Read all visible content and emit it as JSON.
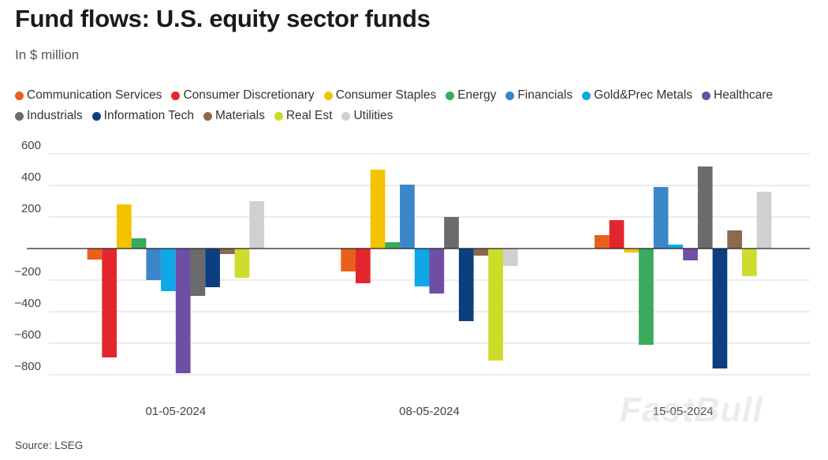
{
  "title": "Fund flows: U.S. equity sector funds",
  "subtitle": "In $ million",
  "source": "Source: LSEG",
  "watermark": "FastBull",
  "chart_data": {
    "type": "bar",
    "title": "Fund flows: U.S. equity sector funds",
    "ylabel": "In $ million",
    "xlabel": "",
    "ylim": [
      -800,
      600
    ],
    "yticks": [
      600,
      400,
      200,
      0,
      -200,
      -400,
      -600,
      -800
    ],
    "ytick_labels": [
      "600",
      "400",
      "200",
      "",
      "−200",
      "−400",
      "−600",
      "−800"
    ],
    "grid": true,
    "legend_position": "top",
    "categories": [
      "01-05-2024",
      "08-05-2024",
      "15-05-2024"
    ],
    "series": [
      {
        "name": "Communication Services",
        "color": "#e8601c",
        "values": [
          -70,
          -145,
          85
        ]
      },
      {
        "name": "Consumer Discretionary",
        "color": "#e3262d",
        "values": [
          -690,
          -220,
          180
        ]
      },
      {
        "name": "Consumer Staples",
        "color": "#f3c300",
        "values": [
          280,
          500,
          -25
        ]
      },
      {
        "name": "Energy",
        "color": "#3aaa5c",
        "values": [
          65,
          40,
          -610
        ]
      },
      {
        "name": "Financials",
        "color": "#3a86c8",
        "values": [
          -200,
          405,
          390
        ]
      },
      {
        "name": "Gold&Prec Metals",
        "color": "#0fa7e5",
        "values": [
          -270,
          -240,
          25
        ]
      },
      {
        "name": "Healthcare",
        "color": "#6e4fa3",
        "values": [
          -790,
          -285,
          -75
        ]
      },
      {
        "name": "Industrials",
        "color": "#6b6b6b",
        "values": [
          -300,
          200,
          520
        ]
      },
      {
        "name": "Information Tech",
        "color": "#0d3f80",
        "values": [
          -245,
          -460,
          -760
        ]
      },
      {
        "name": "Materials",
        "color": "#8b6a4f",
        "values": [
          -35,
          -45,
          115
        ]
      },
      {
        "name": "Real Est",
        "color": "#cddc2a",
        "values": [
          -185,
          -710,
          -175
        ]
      },
      {
        "name": "Utilities",
        "color": "#d0d0d0",
        "values": [
          300,
          -110,
          360
        ]
      }
    ]
  }
}
